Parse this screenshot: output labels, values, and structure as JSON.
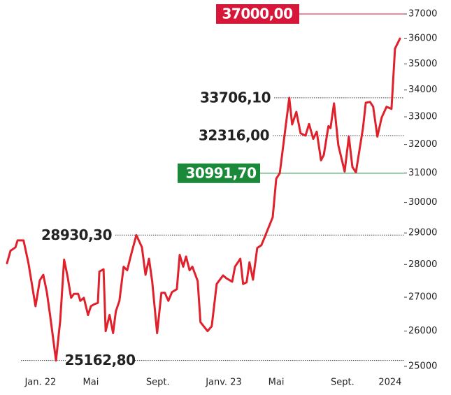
{
  "chart_data": {
    "type": "line",
    "log": true,
    "color": "#e0202a",
    "x": [
      -9.5,
      -8.5,
      -7.1,
      -6.5,
      -4.8,
      -3.4,
      -1.4,
      -0.2,
      0.8,
      1.8,
      2.8,
      4.4,
      5.6,
      6.7,
      7.7,
      8.7,
      9.5,
      10.7,
      11.3,
      12.3,
      13.5,
      14.3,
      15.3,
      16.3,
      16.7,
      17.9,
      18.5,
      19.6,
      20.6,
      21.4,
      22.4,
      23.6,
      24.6,
      25.8,
      27.2,
      28.8,
      29.8,
      30.8,
      31.7,
      33.1,
      34.3,
      35.3,
      36.3,
      37.3,
      38.7,
      39.5,
      40.5,
      41.3,
      42.3,
      43.1,
      44.6,
      45.4,
      47.4,
      48.6,
      50.0,
      51.8,
      52.8,
      54.4,
      55.2,
      56.7,
      57.5,
      58.5,
      59.3,
      60.3,
      61.5,
      62.7,
      65.9,
      66.9,
      67.9,
      70.6,
      71.4,
      72.6,
      73.8,
      75.2,
      76.2,
      77.4,
      78.4,
      79.6,
      80.4,
      81.7,
      82.3,
      83.3,
      84.5,
      86.3,
      87.5,
      88.5,
      89.5,
      91.5,
      92.3,
      93.5,
      94.4,
      95.6,
      96.8,
      98.2,
      99.6,
      100.6,
      102.0
    ],
    "values": [
      28040,
      28430,
      28540,
      28760,
      28760,
      28040,
      26730,
      27510,
      27680,
      27150,
      26410,
      25162.8,
      26300,
      28150,
      27620,
      26980,
      27100,
      27100,
      26890,
      26980,
      26470,
      26730,
      26790,
      26830,
      27780,
      27850,
      26000,
      26470,
      25940,
      26580,
      26890,
      27930,
      27820,
      28340,
      28930.3,
      28540,
      27680,
      28180,
      27470,
      25940,
      27130,
      27130,
      26890,
      27150,
      27240,
      28300,
      27930,
      28250,
      27820,
      27930,
      27490,
      26260,
      26000,
      26140,
      27400,
      27660,
      27570,
      27470,
      27930,
      28180,
      27400,
      27450,
      28070,
      27530,
      28520,
      28610,
      29510,
      30810,
      30991.7,
      33706.1,
      32720,
      33180,
      32400,
      32316,
      32740,
      32200,
      32460,
      31440,
      31630,
      32660,
      32590,
      33500,
      31980,
      31050,
      32280,
      31210,
      31020,
      32590,
      33520,
      33550,
      33370,
      32280,
      32970,
      33370,
      33290,
      35600,
      36000
    ],
    "xlim": [
      -9.5,
      102.0
    ],
    "xticks": [
      {
        "value": 0,
        "label": "Jan. 22"
      },
      {
        "value": 14.3,
        "label": "Mai"
      },
      {
        "value": 33.3,
        "label": "Sept."
      },
      {
        "value": 52,
        "label": "Janv. 23"
      },
      {
        "value": 66.9,
        "label": "Mai"
      },
      {
        "value": 85.7,
        "label": "Sept."
      },
      {
        "value": 99.2,
        "label": "2024"
      }
    ],
    "ylim": [
      25000,
      37000
    ],
    "yticks": [
      25000,
      26000,
      27000,
      28000,
      29000,
      30000,
      31000,
      32000,
      33000,
      34000,
      35000,
      36000,
      37000
    ],
    "annotations": [
      {
        "value": 37000,
        "label": "37000,00",
        "color": "#d6173a"
      },
      {
        "value": 33706.1,
        "label": "33706,10"
      },
      {
        "value": 32316,
        "label": "32316,00"
      },
      {
        "value": 30991.7,
        "label": "30991,70",
        "color": "#1a8a3a"
      },
      {
        "value": 28930.3,
        "label": "28930,30"
      },
      {
        "value": 25162.8,
        "label": "25162,80"
      }
    ]
  }
}
